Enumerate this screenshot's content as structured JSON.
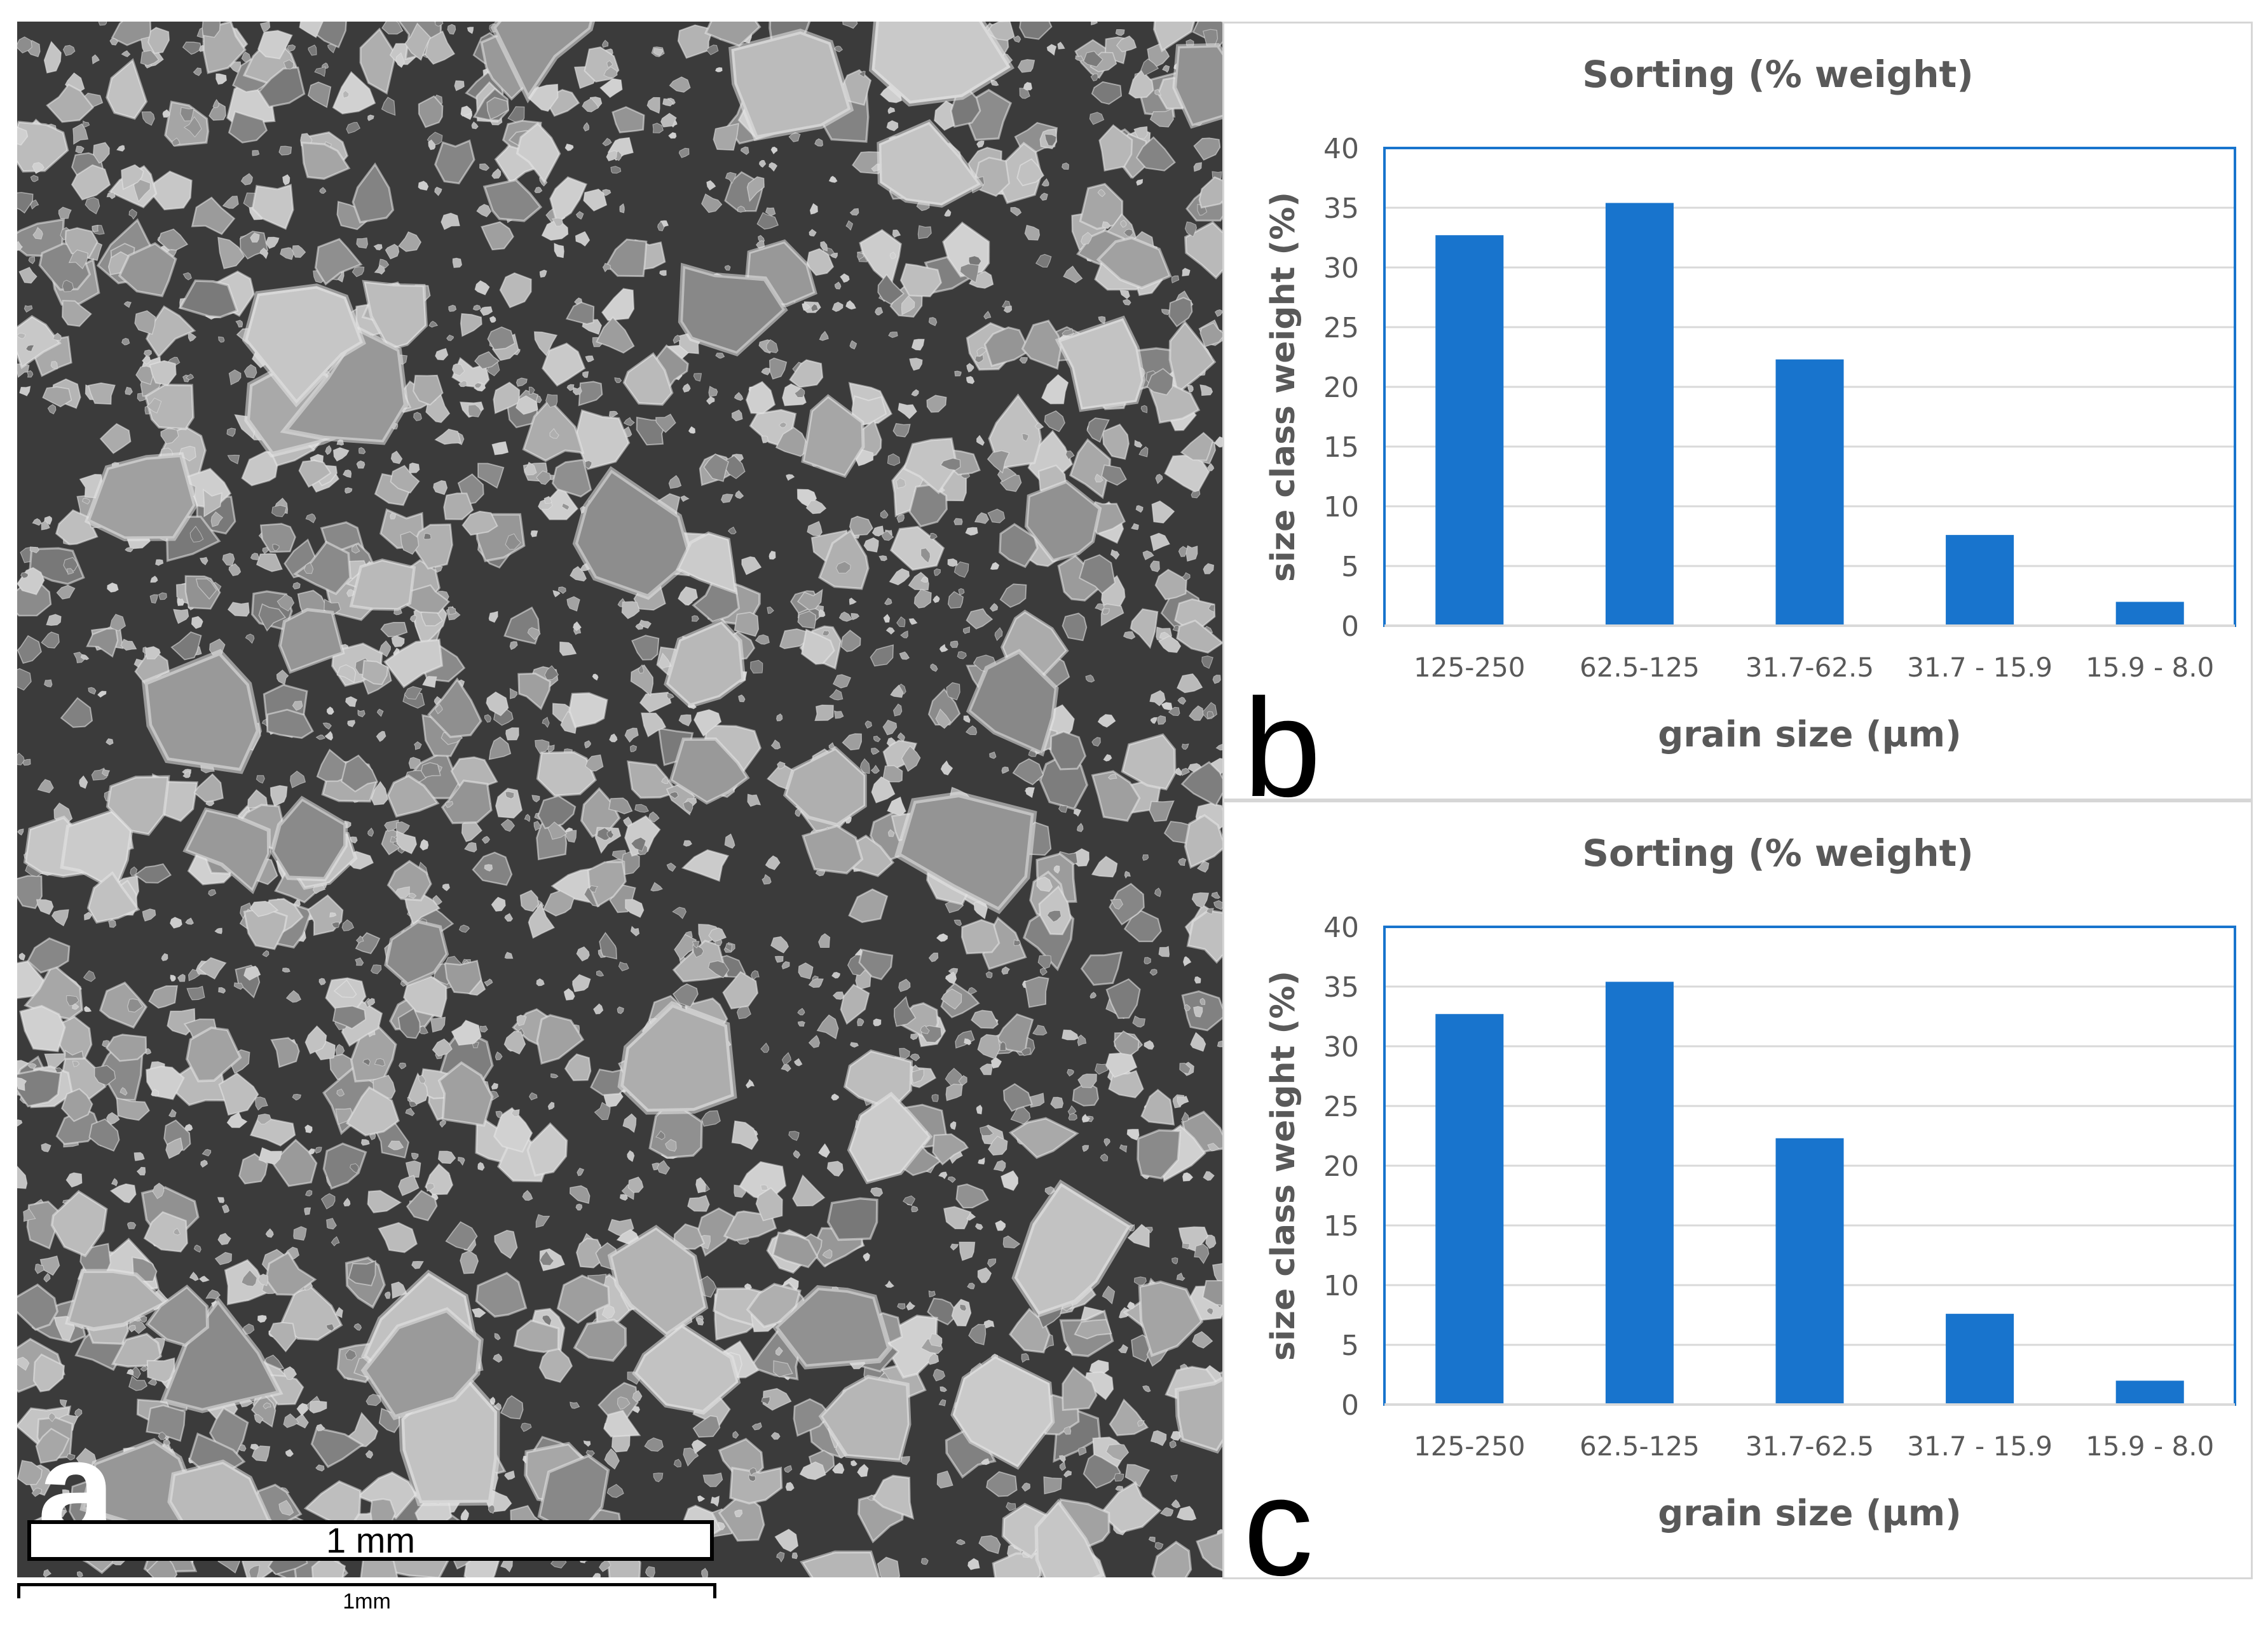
{
  "panels": {
    "a": {
      "letter": "a",
      "scale_bar_label": "1 mm",
      "outer_scale_label": "1mm"
    },
    "b": {
      "letter": "b"
    },
    "c": {
      "letter": "c"
    }
  },
  "colors": {
    "bar": "#1874cd",
    "plot_border": "#1874cd",
    "grid": "#d9d9d9",
    "text": "#595959"
  },
  "chart_data": [
    {
      "id": "b",
      "type": "bar",
      "title": "Sorting (% weight)",
      "xlabel": "grain size (µm)",
      "ylabel": "size class weight (%)",
      "categories": [
        "125-250",
        "62.5-125",
        "31.7-62.5",
        "31.7 - 15.9",
        "15.9 - 8.0"
      ],
      "values": [
        32.7,
        35.4,
        22.3,
        7.6,
        2.0
      ],
      "ylim": [
        0,
        40
      ],
      "yticks": [
        0,
        5,
        10,
        15,
        20,
        25,
        30,
        35,
        40
      ],
      "grid": true,
      "legend": "none"
    },
    {
      "id": "c",
      "type": "bar",
      "title": "Sorting (% weight)",
      "xlabel": "grain size (µm)",
      "ylabel": "size class weight (%)",
      "categories": [
        "125-250",
        "62.5-125",
        "31.7-62.5",
        "31.7 - 15.9",
        "15.9 - 8.0"
      ],
      "values": [
        32.7,
        35.4,
        22.3,
        7.6,
        2.0
      ],
      "ylim": [
        0,
        40
      ],
      "yticks": [
        0,
        5,
        10,
        15,
        20,
        25,
        30,
        35,
        40
      ],
      "grid": true,
      "legend": "none"
    }
  ]
}
